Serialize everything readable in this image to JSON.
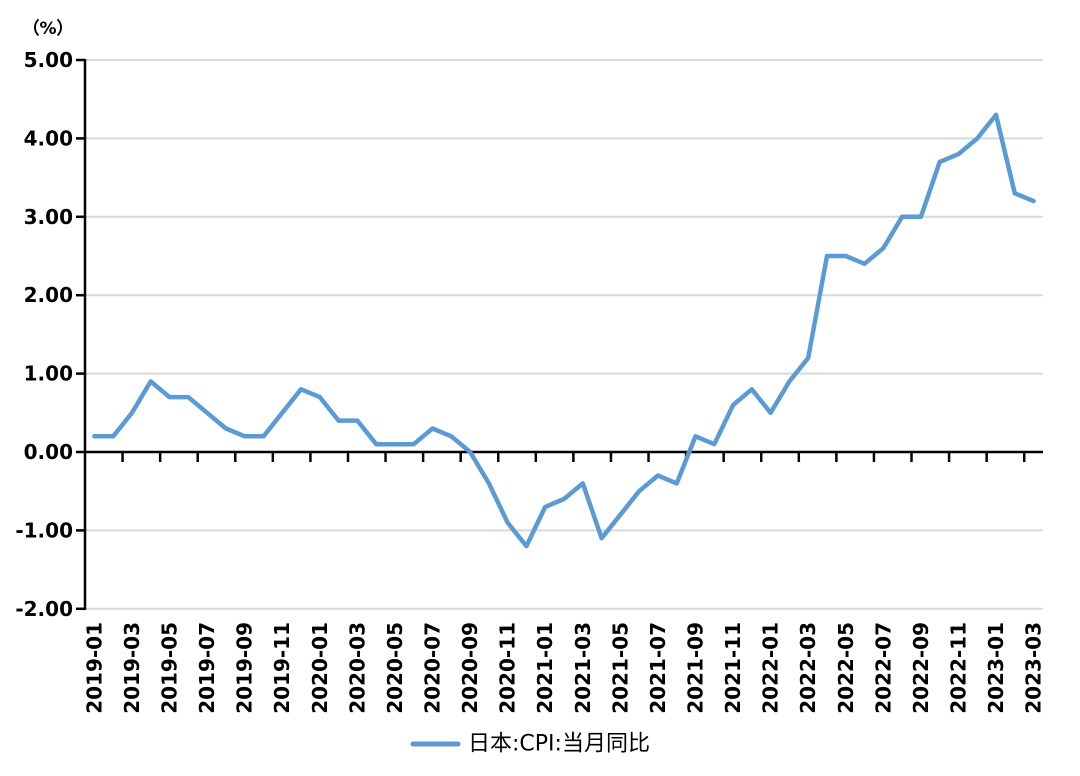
{
  "chart": {
    "unit_label": "（%）",
    "legend_label": "日本:CPI:当月同比"
  },
  "colors": {
    "line": "#5B9BD5",
    "axis": "#000000",
    "grid": "#D9D9D9",
    "text": "#000000"
  },
  "chart_data": {
    "type": "line",
    "title": "",
    "unit": "%",
    "legend_position": "bottom",
    "grid": "horizontal",
    "ylim": [
      -2,
      5
    ],
    "y_ticks": [
      5,
      4,
      3,
      2,
      1,
      0,
      -1,
      -2
    ],
    "y_tick_labels": [
      "5.00",
      "4.00",
      "3.00",
      "2.00",
      "1.00",
      "0.00",
      "-1.00",
      "-2.00"
    ],
    "x": [
      "2019-01",
      "2019-02",
      "2019-03",
      "2019-04",
      "2019-05",
      "2019-06",
      "2019-07",
      "2019-08",
      "2019-09",
      "2019-10",
      "2019-11",
      "2019-12",
      "2020-01",
      "2020-02",
      "2020-03",
      "2020-04",
      "2020-05",
      "2020-06",
      "2020-07",
      "2020-08",
      "2020-09",
      "2020-10",
      "2020-11",
      "2020-12",
      "2021-01",
      "2021-02",
      "2021-03",
      "2021-04",
      "2021-05",
      "2021-06",
      "2021-07",
      "2021-08",
      "2021-09",
      "2021-10",
      "2021-11",
      "2021-12",
      "2022-01",
      "2022-02",
      "2022-03",
      "2022-04",
      "2022-05",
      "2022-06",
      "2022-07",
      "2022-08",
      "2022-09",
      "2022-10",
      "2022-11",
      "2022-12",
      "2023-01",
      "2023-02",
      "2023-03"
    ],
    "x_tick_labels": [
      "2019-01",
      "2019-03",
      "2019-05",
      "2019-07",
      "2019-09",
      "2019-11",
      "2020-01",
      "2020-03",
      "2020-05",
      "2020-07",
      "2020-09",
      "2020-11",
      "2021-01",
      "2021-03",
      "2021-05",
      "2021-07",
      "2021-09",
      "2021-11",
      "2022-01",
      "2022-03",
      "2022-05",
      "2022-07",
      "2022-09",
      "2022-11",
      "2023-01",
      "2023-03"
    ],
    "series": [
      {
        "name": "日本:CPI:当月同比",
        "values": [
          0.2,
          0.2,
          0.5,
          0.9,
          0.7,
          0.7,
          0.5,
          0.3,
          0.2,
          0.2,
          0.5,
          0.8,
          0.7,
          0.4,
          0.4,
          0.1,
          0.1,
          0.1,
          0.3,
          0.2,
          0.0,
          -0.4,
          -0.9,
          -1.2,
          -0.7,
          -0.6,
          -0.4,
          -1.1,
          -0.8,
          -0.5,
          -0.3,
          -0.4,
          0.2,
          0.1,
          0.6,
          0.8,
          0.5,
          0.9,
          1.2,
          2.5,
          2.5,
          2.4,
          2.6,
          3.0,
          3.0,
          3.7,
          3.8,
          4.0,
          4.3,
          3.3,
          3.2
        ]
      }
    ]
  }
}
